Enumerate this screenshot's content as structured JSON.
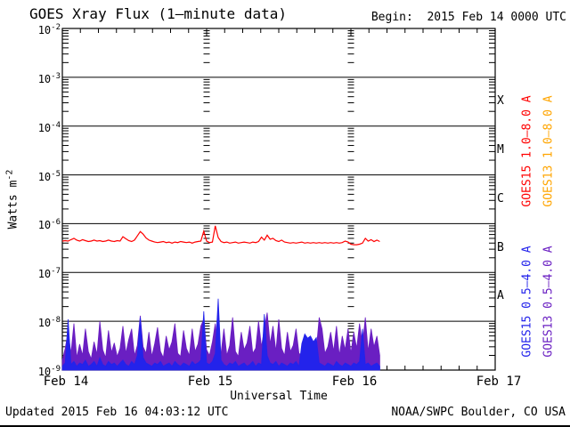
{
  "header": {
    "title": "GOES Xray Flux (1–minute data)",
    "begin": "Begin:  2015 Feb 14 0000 UTC"
  },
  "footer": {
    "updated": "Updated 2015 Feb 16 04:03:12 UTC",
    "source": "NOAA/SWPC Boulder, CO USA"
  },
  "axes": {
    "y_title_base": "Watts m",
    "y_title_exp": "-2",
    "y_ticks": [
      {
        "base": "10",
        "exp": "-2"
      },
      {
        "base": "10",
        "exp": "-3"
      },
      {
        "base": "10",
        "exp": "-4"
      },
      {
        "base": "10",
        "exp": "-5"
      },
      {
        "base": "10",
        "exp": "-6"
      },
      {
        "base": "10",
        "exp": "-7"
      },
      {
        "base": "10",
        "exp": "-8"
      },
      {
        "base": "10",
        "exp": "-9"
      }
    ],
    "x_ticks": [
      "Feb 14",
      "Feb 15",
      "Feb 16",
      "Feb 17"
    ],
    "x_title": "Universal Time",
    "flare_classes": [
      "X",
      "M",
      "C",
      "B",
      "A"
    ]
  },
  "legend": {
    "goes15_long": {
      "label": "GOES15 1.0–8.0 A",
      "color": "#ff0000"
    },
    "goes13_long": {
      "label": "GOES13 1.0–8.0 A",
      "color": "#ffa500"
    },
    "goes15_short": {
      "label": "GOES15 0.5–4.0 A",
      "color": "#2323eb"
    },
    "goes13_short": {
      "label": "GOES13 0.5–4.0 A",
      "color": "#6a1fc2"
    }
  },
  "chart_data": {
    "type": "line",
    "title": "GOES Xray Flux (1–minute data)",
    "xlabel": "Universal Time",
    "ylabel": "Watts m^-2",
    "yscale": "log",
    "ylim": [
      1e-09,
      0.01
    ],
    "x_range": [
      "2015 Feb 14 0000 UTC",
      "2015 Feb 17 0000 UTC"
    ],
    "x_days": [
      "Feb 14",
      "Feb 15",
      "Feb 16",
      "Feb 17"
    ],
    "grid": "horizontal decade lines; tick columns at day boundaries",
    "legend_position": "right, rotated",
    "sample_step_days": 0.02,
    "series": [
      {
        "name": "GOES13 0.5-4.0 A",
        "color": "#6a1fc2",
        "style": "filled",
        "scale": 1e-09,
        "values": [
          1.6,
          2.8,
          6.0,
          2.2,
          9.0,
          1.8,
          3.4,
          2.0,
          7.0,
          2.4,
          1.7,
          3.8,
          2.1,
          10.0,
          2.6,
          1.8,
          6.5,
          2.3,
          3.6,
          1.9,
          2.8,
          8.0,
          2.2,
          4.2,
          7.0,
          2.0,
          3.2,
          13.0,
          3.0,
          2.2,
          6.0,
          1.9,
          3.5,
          7.5,
          2.4,
          1.8,
          5.0,
          2.6,
          3.8,
          9.0,
          2.2,
          1.9,
          6.5,
          2.8,
          2.0,
          7.0,
          2.4,
          3.4,
          8.0,
          11.0,
          2.6,
          2.0,
          3.8,
          9.0,
          2.8,
          2.2,
          7.0,
          2.0,
          3.2,
          12.0,
          2.4,
          1.9,
          6.0,
          2.6,
          3.6,
          8.0,
          2.2,
          2.8,
          10.0,
          3.0,
          7.0,
          15.0,
          3.4,
          8.0,
          2.4,
          11.0,
          2.8,
          2.0,
          6.0,
          2.4,
          3.2,
          7.0,
          2.2,
          2.0,
          2.4,
          2.1,
          2.3,
          2.2,
          2.6,
          12.0,
          7.0,
          2.2,
          3.0,
          6.0,
          2.4,
          8.0,
          2.0,
          5.0,
          2.6,
          7.0,
          2.2,
          6.0,
          2.8,
          9.0,
          3.2,
          12.0,
          2.4,
          7.0,
          3.0,
          5.0,
          2.0
        ]
      },
      {
        "name": "GOES15 0.5-4.0 A",
        "color": "#2323eb",
        "style": "filled",
        "scale": 1e-09,
        "values": [
          1.2,
          1.4,
          11.0,
          1.3,
          1.5,
          1.2,
          1.4,
          1.3,
          1.6,
          1.2,
          1.3,
          1.5,
          1.2,
          1.8,
          1.3,
          1.2,
          1.5,
          1.3,
          1.4,
          1.2,
          1.4,
          1.6,
          1.3,
          1.2,
          1.5,
          1.3,
          2.0,
          12.0,
          1.8,
          1.4,
          1.3,
          1.2,
          1.4,
          1.3,
          1.5,
          1.2,
          1.3,
          1.4,
          1.2,
          1.5,
          1.3,
          1.2,
          1.4,
          1.3,
          1.2,
          1.5,
          1.3,
          1.4,
          1.6,
          16.0,
          1.4,
          1.3,
          1.5,
          2.2,
          29.0,
          1.6,
          1.3,
          1.2,
          1.4,
          1.3,
          1.5,
          1.2,
          1.3,
          1.4,
          1.2,
          1.3,
          1.5,
          1.2,
          1.4,
          1.3,
          14.0,
          2.0,
          1.4,
          1.3,
          1.5,
          1.2,
          1.4,
          1.3,
          1.2,
          1.4,
          1.3,
          1.5,
          1.2,
          3.5,
          5.5,
          4.5,
          5.0,
          3.8,
          4.6,
          1.4,
          1.3,
          1.2,
          1.4,
          1.3,
          1.2,
          1.5,
          1.3,
          1.2,
          1.4,
          1.3,
          1.2,
          1.4,
          1.3,
          1.5,
          7.0,
          1.3,
          1.4,
          1.2,
          1.3,
          1.4,
          1.2
        ]
      },
      {
        "name": "GOES15 1.0-8.0 A",
        "color": "#ff0000",
        "style": "line",
        "scale": 1e-07,
        "values": [
          4.4,
          4.5,
          4.4,
          4.7,
          5.0,
          4.6,
          4.4,
          4.7,
          4.5,
          4.3,
          4.4,
          4.6,
          4.4,
          4.5,
          4.3,
          4.4,
          4.6,
          4.4,
          4.3,
          4.5,
          4.4,
          5.4,
          4.9,
          4.5,
          4.3,
          4.6,
          5.6,
          6.9,
          6.1,
          5.1,
          4.6,
          4.4,
          4.2,
          4.1,
          4.2,
          4.3,
          4.1,
          4.2,
          4.0,
          4.2,
          4.1,
          4.3,
          4.2,
          4.1,
          4.2,
          4.0,
          4.2,
          4.3,
          4.4,
          7.0,
          4.4,
          4.1,
          4.2,
          9.0,
          5.2,
          4.3,
          4.1,
          4.2,
          4.0,
          4.1,
          4.2,
          4.0,
          4.1,
          4.2,
          4.1,
          4.0,
          4.2,
          4.1,
          4.3,
          5.3,
          4.6,
          5.8,
          4.8,
          5.0,
          4.5,
          4.3,
          4.6,
          4.2,
          4.1,
          4.0,
          4.1,
          4.0,
          4.1,
          4.2,
          4.0,
          4.1,
          4.0,
          4.1,
          4.0,
          4.1,
          4.0,
          4.1,
          4.0,
          4.1,
          4.0,
          4.1,
          4.0,
          4.1,
          4.4,
          4.2,
          3.8,
          3.7,
          3.7,
          3.8,
          4.0,
          5.0,
          4.4,
          4.7,
          4.3,
          4.6,
          4.3
        ]
      },
      {
        "name": "GOES13 1.0-8.0 A",
        "color": "#ffa500",
        "style": "line",
        "scale": 1e-07,
        "values": []
      }
    ]
  }
}
